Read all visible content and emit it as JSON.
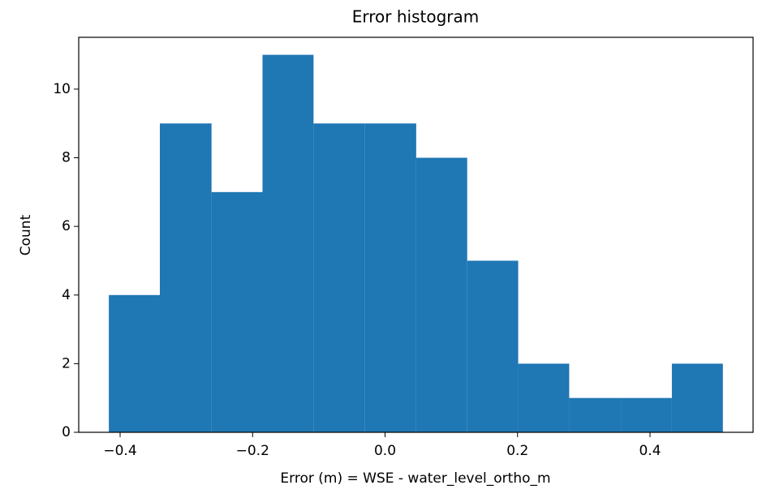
{
  "chart_data": {
    "type": "histogram",
    "title": "Error histogram",
    "x_label": "Error (m) = WSE - water_level_ortho_m",
    "y_label": "Count",
    "bins": [
      -0.417,
      -0.34,
      -0.262,
      -0.185,
      -0.108,
      -0.031,
      0.047,
      0.124,
      0.201,
      0.278,
      0.356,
      0.433,
      0.51
    ],
    "values": [
      4,
      9,
      7,
      11,
      9,
      9,
      8,
      5,
      2,
      1,
      1,
      2
    ],
    "color": "#1f77b4",
    "xlim": [
      -0.4625,
      0.5556
    ],
    "xticks": [
      {
        "value": -0.4,
        "label": "−0.4"
      },
      {
        "value": -0.2,
        "label": "−0.2"
      },
      {
        "value": 0,
        "label": "0.0"
      },
      0.2,
      0.4
    ],
    "ylim": [
      0,
      11.51
    ],
    "yticks": [
      0,
      2,
      4,
      6,
      8,
      10
    ]
  }
}
